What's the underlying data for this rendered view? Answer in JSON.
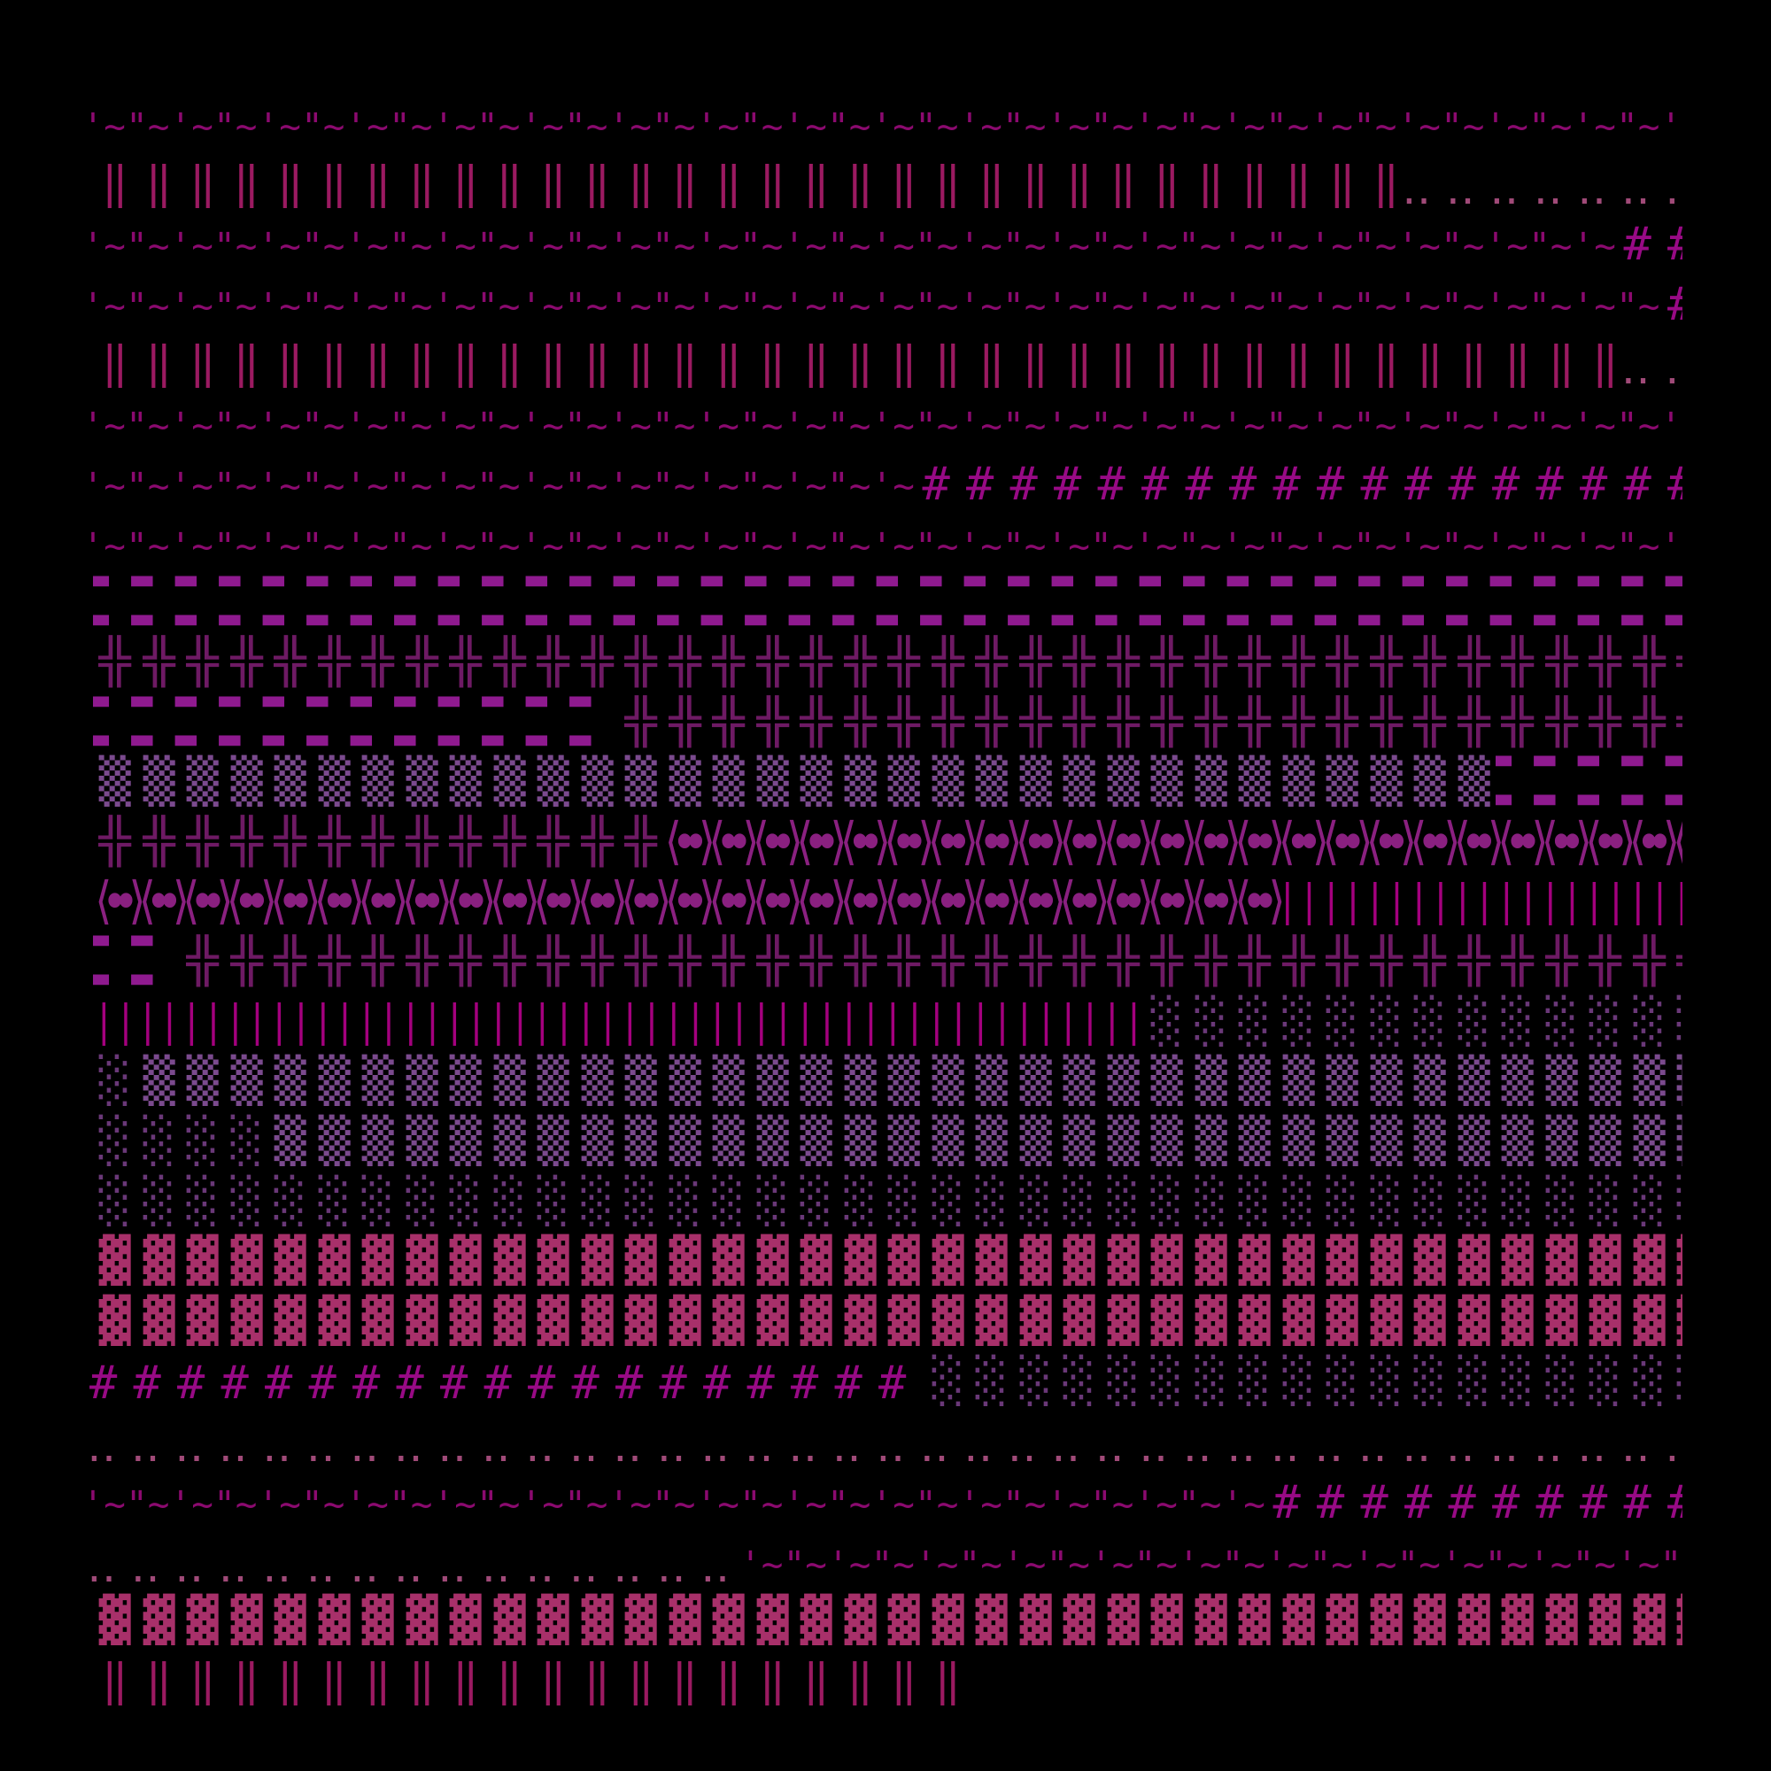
{
  "background": "#000000",
  "glyphs": {
    "tq": {
      "name": "quote-tilde",
      "units": [
        "'~",
        "\"~"
      ],
      "color": "#8b0a6f"
    },
    "dbar": {
      "name": "double-vertical-bar",
      "units": [
        "‖"
      ],
      "color": "#9b1a61"
    },
    "dots": {
      "name": "two-dot-leader",
      "units": [
        "‥"
      ],
      "color": "#a04a78"
    },
    "hash": {
      "name": "hash",
      "units": [
        "#"
      ],
      "color": "#980a85"
    },
    "dash": {
      "name": "black-rectangle",
      "units": [
        "▬"
      ],
      "color": "#8f1a8f"
    },
    "cross": {
      "name": "double-cross",
      "units": [
        "╬"
      ],
      "color": "#6e1a64"
    },
    "med": {
      "name": "medium-shade",
      "units": [
        "▒"
      ],
      "color": "#7b4a8e"
    },
    "light": {
      "name": "light-shade",
      "units": [
        "░"
      ],
      "color": "#6a3878"
    },
    "dark": {
      "name": "dark-shade",
      "units": [
        "▓"
      ],
      "color": "#a8306a"
    },
    "angle": {
      "name": "angle-bracket-dots",
      "units": [
        "⟨∙∙⟩"
      ],
      "color": "#8a2080"
    },
    "bars": {
      "name": "vertical-bars",
      "units": [
        "||"
      ],
      "color": "#a4007e"
    }
  },
  "rows": [
    [
      {
        "g": "tq",
        "n": 37
      }
    ],
    [
      {
        "g": "dbar",
        "n": 30
      },
      {
        "g": "dots",
        "n": 7
      }
    ],
    [
      {
        "g": "tq",
        "n": 35
      },
      {
        "g": "hash",
        "n": 2
      }
    ],
    [
      {
        "g": "tq",
        "n": 36
      },
      {
        "g": "hash",
        "n": 1
      }
    ],
    [
      {
        "g": "dbar",
        "n": 35
      },
      {
        "g": "dots",
        "n": 2
      }
    ],
    [
      {
        "g": "tq",
        "n": 37
      }
    ],
    [
      {
        "g": "tq",
        "n": 19
      },
      {
        "g": "hash",
        "n": 18
      }
    ],
    [
      {
        "g": "tq",
        "n": 37
      }
    ],
    [
      {
        "g": "dash",
        "n": 37
      }
    ],
    [
      {
        "g": "cross",
        "n": 37
      }
    ],
    [
      {
        "g": "dash",
        "n": 12
      },
      {
        "g": "cross",
        "n": 25
      }
    ],
    [
      {
        "g": "med",
        "n": 32
      },
      {
        "g": "dash",
        "n": 5
      }
    ],
    [
      {
        "g": "cross",
        "n": 13
      },
      {
        "g": "angle",
        "n": 24
      }
    ],
    [
      {
        "g": "angle",
        "n": 27
      },
      {
        "g": "bars",
        "n": 10
      }
    ],
    [
      {
        "g": "dash",
        "n": 2
      },
      {
        "g": "cross",
        "n": 35
      }
    ],
    [
      {
        "g": "bars",
        "n": 24
      },
      {
        "g": "light",
        "n": 13
      }
    ],
    [
      {
        "g": "light",
        "n": 1
      },
      {
        "g": "med",
        "n": 36
      }
    ],
    [
      {
        "g": "light",
        "n": 4
      },
      {
        "g": "med",
        "n": 33
      }
    ],
    [
      {
        "g": "light",
        "n": 37
      }
    ],
    [
      {
        "g": "dark",
        "n": 37
      }
    ],
    [
      {
        "g": "dark",
        "n": 37
      }
    ],
    [
      {
        "g": "hash",
        "n": 19
      },
      {
        "g": "light",
        "n": 18
      }
    ],
    [
      {
        "g": "dots",
        "n": 37
      }
    ],
    [
      {
        "g": "tq",
        "n": 27
      },
      {
        "g": "hash",
        "n": 10
      }
    ],
    [
      {
        "g": "dots",
        "n": 15
      },
      {
        "g": "tq",
        "n": 22
      }
    ],
    [
      {
        "g": "dark",
        "n": 37
      }
    ],
    [
      {
        "g": "dbar",
        "n": 20
      }
    ]
  ]
}
